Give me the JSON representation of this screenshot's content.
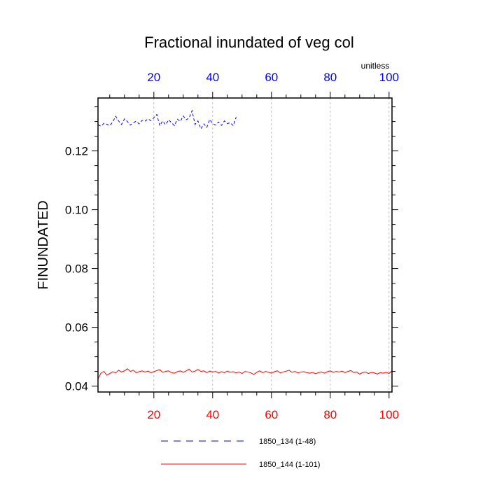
{
  "chart_data": {
    "type": "line",
    "title": "Fractional inundated of veg col",
    "units_label": "unitless",
    "ylabel": "FINUNDATED",
    "xlim": [
      1,
      101
    ],
    "ylim": [
      0.038,
      0.138
    ],
    "y_ticks": [
      0.04,
      0.06,
      0.08,
      0.1,
      0.12
    ],
    "y_tick_labels": [
      "0.04",
      "0.06",
      "0.08",
      "0.10",
      "0.12"
    ],
    "bottom_x_ticks": [
      20,
      40,
      60,
      80,
      100
    ],
    "bottom_x_tick_labels": [
      "20",
      "40",
      "60",
      "80",
      "100"
    ],
    "top_x_ticks": [
      20,
      40,
      60,
      80,
      100
    ],
    "top_x_tick_labels": [
      "20",
      "40",
      "60",
      "80",
      "100"
    ],
    "grid": "vertical dashed at x ticks",
    "colors": {
      "top_axis": "#0000ff",
      "bottom_axis": "#ff0000",
      "series_1": "#0000ff",
      "series_2": "#ff0000"
    },
    "series": [
      {
        "name": "1850_134 (1-48)",
        "color": "#0000ff",
        "style": "dashed",
        "x_start": 1,
        "values": [
          0.1289,
          0.1284,
          0.1294,
          0.1291,
          0.1286,
          0.1298,
          0.1318,
          0.1302,
          0.129,
          0.1309,
          0.13,
          0.1288,
          0.1296,
          0.1301,
          0.1292,
          0.1304,
          0.1301,
          0.1309,
          0.1303,
          0.1313,
          0.1324,
          0.1286,
          0.1302,
          0.1289,
          0.1306,
          0.1296,
          0.1286,
          0.1308,
          0.13,
          0.1319,
          0.1306,
          0.1312,
          0.1337,
          0.129,
          0.1302,
          0.1275,
          0.1292,
          0.128,
          0.1307,
          0.1293,
          0.1288,
          0.1298,
          0.1287,
          0.1302,
          0.1293,
          0.1296,
          0.1286,
          0.1315
        ]
      },
      {
        "name": "1850_144 (1-101)",
        "color": "#ff0000",
        "style": "solid",
        "x_start": 1,
        "values": [
          0.0425,
          0.0444,
          0.045,
          0.0437,
          0.0443,
          0.0449,
          0.0445,
          0.0454,
          0.0448,
          0.0452,
          0.0459,
          0.045,
          0.0454,
          0.0446,
          0.0449,
          0.0452,
          0.0448,
          0.0451,
          0.0446,
          0.0449,
          0.0453,
          0.0456,
          0.0447,
          0.045,
          0.0452,
          0.0446,
          0.0444,
          0.0449,
          0.0452,
          0.0447,
          0.0452,
          0.0458,
          0.0448,
          0.0451,
          0.0457,
          0.045,
          0.0452,
          0.0446,
          0.0451,
          0.0448,
          0.045,
          0.0445,
          0.0449,
          0.0446,
          0.0451,
          0.0447,
          0.0449,
          0.0445,
          0.0448,
          0.0443,
          0.045,
          0.0448,
          0.0445,
          0.044,
          0.0447,
          0.0452,
          0.0446,
          0.045,
          0.0447,
          0.0444,
          0.0449,
          0.0452,
          0.0445,
          0.0448,
          0.0451,
          0.0454,
          0.0447,
          0.045,
          0.0445,
          0.0448,
          0.0449,
          0.0446,
          0.0444,
          0.0447,
          0.0442,
          0.0446,
          0.0448,
          0.0444,
          0.0449,
          0.0452,
          0.0447,
          0.045,
          0.0448,
          0.0451,
          0.0446,
          0.045,
          0.0453,
          0.0446,
          0.0448,
          0.0441,
          0.0446,
          0.0448,
          0.0443,
          0.0447,
          0.0445,
          0.0441,
          0.0446,
          0.0444,
          0.0447,
          0.0443,
          0.0452
        ]
      }
    ]
  }
}
